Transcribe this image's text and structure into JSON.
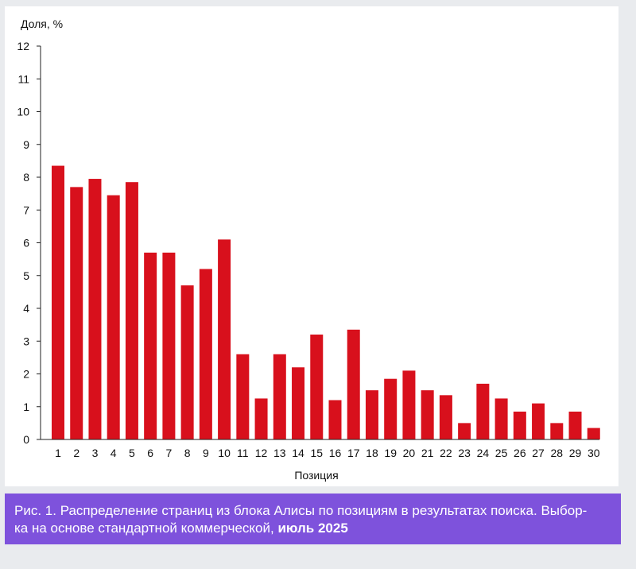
{
  "chart_data": {
    "type": "bar",
    "ylabel": "Доля, %",
    "xlabel": "Позиция",
    "ylim": [
      0,
      12
    ],
    "yticks": [
      "0",
      "1",
      "2",
      "3",
      "4",
      "5",
      "6",
      "7",
      "8",
      "9",
      "10",
      "11",
      "12"
    ],
    "categories": [
      "1",
      "2",
      "3",
      "4",
      "5",
      "6",
      "7",
      "8",
      "9",
      "10",
      "11",
      "12",
      "13",
      "14",
      "15",
      "16",
      "17",
      "18",
      "19",
      "20",
      "21",
      "22",
      "23",
      "24",
      "25",
      "26",
      "27",
      "28",
      "29",
      "30"
    ],
    "values": [
      8.35,
      7.7,
      7.95,
      7.45,
      7.85,
      5.7,
      5.7,
      4.7,
      5.2,
      6.1,
      2.6,
      1.25,
      2.6,
      2.2,
      3.2,
      1.2,
      3.35,
      1.5,
      1.85,
      2.1,
      1.5,
      1.35,
      0.5,
      1.7,
      1.25,
      0.85,
      1.1,
      0.5,
      0.85,
      0.35
    ],
    "bar_color": "#d8101c",
    "grid": false
  },
  "caption": {
    "figure_label": "Рис. 1.",
    "line1": " Распределение страниц из блока Алисы по позициям в результатах поиска. Выбор-",
    "line2": "ка на основе стандартной коммерческой, ",
    "line2_bold": "июль 2025"
  },
  "colors": {
    "background": "#e9ebee",
    "caption_bg": "#7e52dc",
    "bar": "#d8101c"
  }
}
